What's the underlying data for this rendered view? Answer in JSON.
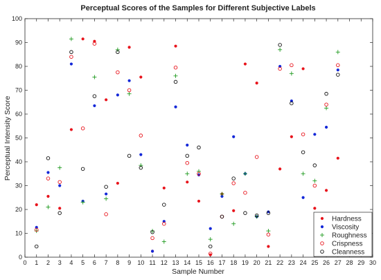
{
  "chart_data": {
    "type": "scatter",
    "title": "Perceptual Scores of the Samples for Different Subjective Labels",
    "xlabel": "Sample Number",
    "ylabel": "Perceptual Intensity Score",
    "xlim": [
      0,
      30
    ],
    "ylim": [
      0,
      100
    ],
    "xticks": [
      0,
      1,
      2,
      3,
      4,
      5,
      6,
      7,
      8,
      9,
      10,
      11,
      12,
      13,
      14,
      15,
      16,
      17,
      18,
      19,
      20,
      21,
      22,
      23,
      24,
      25,
      26,
      27,
      28,
      29,
      30
    ],
    "yticks": [
      0,
      10,
      20,
      30,
      40,
      50,
      60,
      70,
      80,
      90,
      100
    ],
    "grid": false,
    "legend_position": "bottom-right",
    "x": [
      1,
      2,
      3,
      4,
      5,
      6,
      7,
      8,
      9,
      10,
      11,
      12,
      13,
      14,
      15,
      16,
      17,
      18,
      19,
      20,
      21,
      22,
      23,
      24,
      25,
      26,
      27
    ],
    "series": [
      {
        "name": "Hardness",
        "marker": "filled-dot",
        "color": "#e8141c",
        "values": [
          22,
          25.5,
          20.5,
          53.5,
          91.5,
          90.5,
          66,
          31,
          88,
          75.5,
          2.5,
          29,
          88.5,
          31.5,
          23.5,
          1,
          26.5,
          19.5,
          81,
          73,
          4.5,
          37,
          50.5,
          79,
          20.5,
          28,
          41.5
        ]
      },
      {
        "name": "Viscosity",
        "marker": "filled-dot",
        "color": "#1428d8",
        "values": [
          12.5,
          35.5,
          30,
          81,
          23.5,
          63.5,
          26.5,
          68,
          74,
          43,
          2.5,
          15,
          63,
          47,
          34.5,
          12,
          25.5,
          50.5,
          35,
          17,
          19,
          80,
          65.5,
          25,
          51.5,
          54.5,
          78.5
        ]
      },
      {
        "name": "Roughness",
        "marker": "plus",
        "color": "#1f9a1f",
        "values": [
          11,
          21,
          37.5,
          91.5,
          23,
          75.5,
          24.5,
          87,
          68.5,
          38.5,
          11,
          6.5,
          76,
          35,
          36,
          7.5,
          26.5,
          14,
          35,
          17,
          11,
          87,
          77,
          35,
          32,
          62.5,
          86
        ]
      },
      {
        "name": "Crispness",
        "marker": "open-circle",
        "color": "#e8141c",
        "values": [
          11.5,
          33,
          31.5,
          84,
          54,
          89.5,
          18,
          77.5,
          70,
          51,
          8,
          14,
          79.5,
          39.5,
          35,
          1.5,
          17,
          31,
          27,
          42,
          9.5,
          79,
          80.5,
          51.5,
          30,
          64,
          80.5
        ]
      },
      {
        "name": "Cleanness",
        "marker": "open-circle",
        "color": "#111111",
        "values": [
          4.5,
          41.5,
          18.5,
          86,
          37,
          67.5,
          29.5,
          86,
          42.5,
          37.5,
          10.5,
          22,
          73.5,
          42.5,
          46,
          4.5,
          17,
          33,
          18.5,
          17.5,
          18.5,
          89,
          64.5,
          44,
          38.5,
          68.5,
          76.5
        ]
      }
    ]
  }
}
